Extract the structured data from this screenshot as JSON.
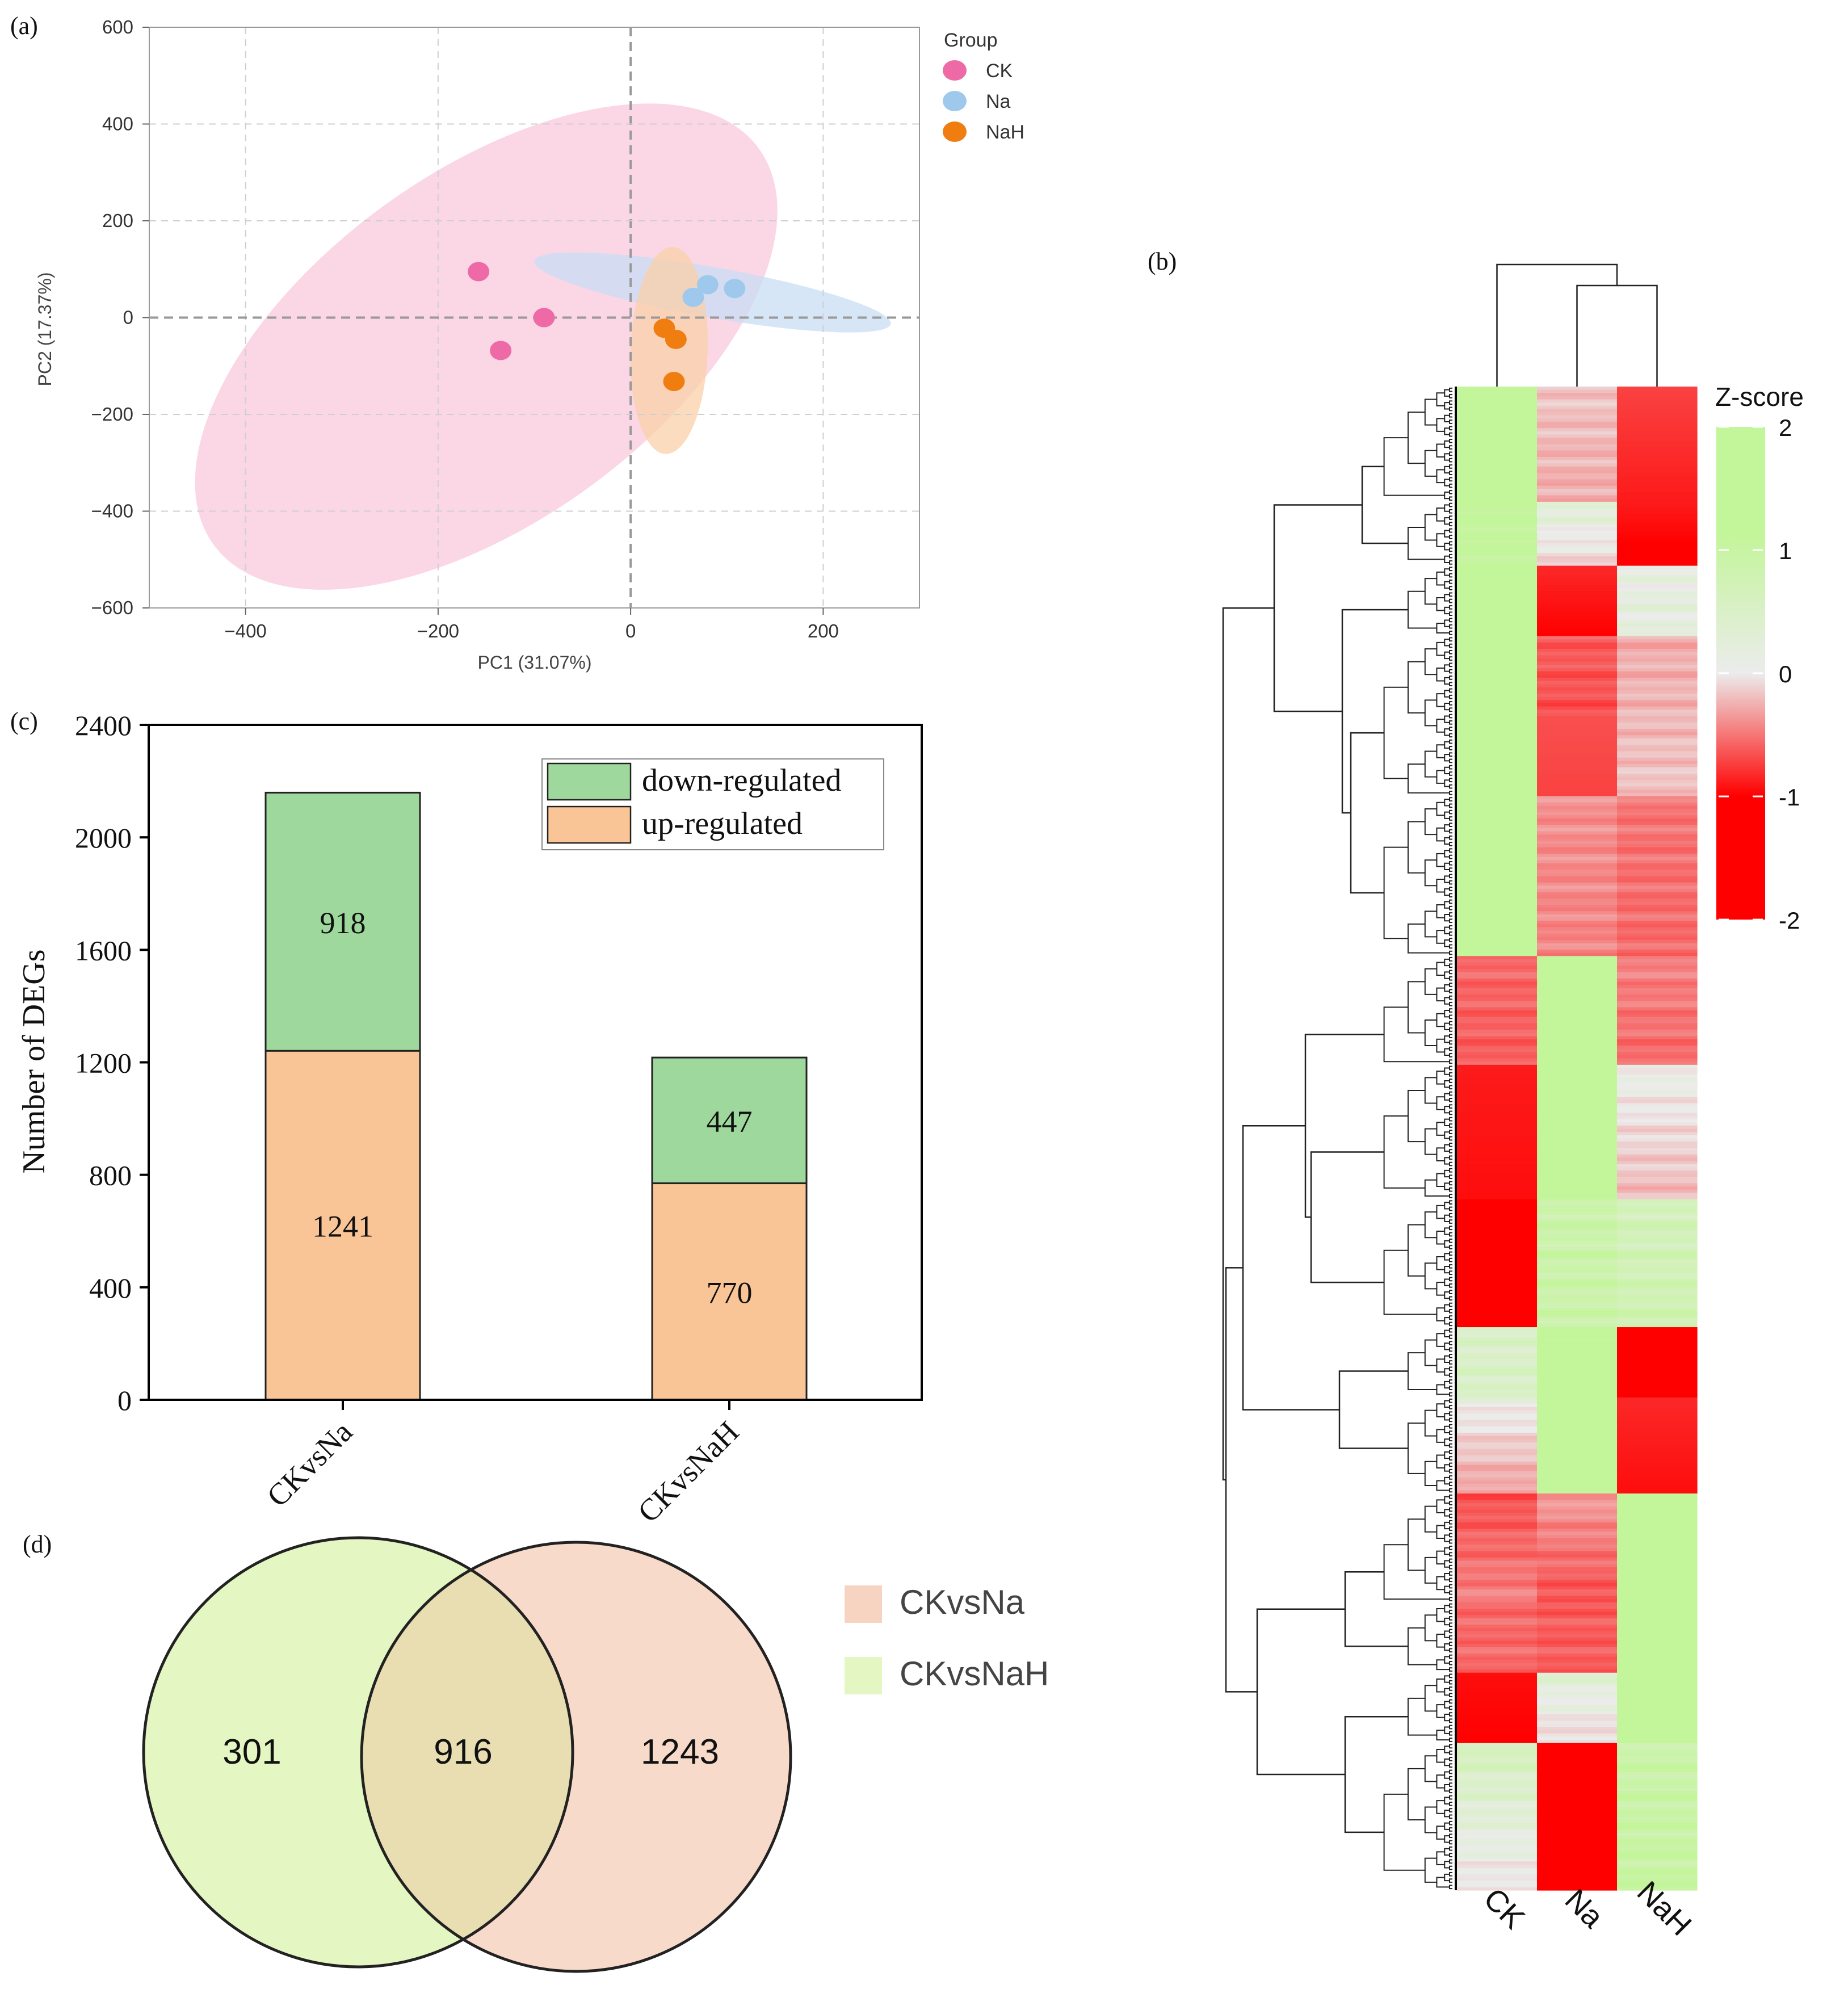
{
  "colors": {
    "ck": "#ee6aa7",
    "na": "#9fc9ec",
    "nah": "#f07d10",
    "ck_ellipse": "#f9c8dc",
    "na_ellipse": "#c8def4",
    "nah_ellipse": "#f9d0a8",
    "down": "#9ed89c",
    "up": "#f9c496",
    "heat_pos": "#c3f59a",
    "heat_zero": "#ececec",
    "heat_neg": "#ff0000",
    "venn_na": "#f7d4c2",
    "venn_nah": "#e4f6c2"
  },
  "panels": {
    "a": "(a)",
    "b": "(b)",
    "c": "(c)",
    "d": "(d)"
  },
  "chart_data": [
    {
      "id": "pca",
      "type": "scatter",
      "title": "",
      "xlabel": "PC1 (31.07%)",
      "ylabel": "PC2 (17.37%)",
      "xlim": [
        -500,
        300
      ],
      "ylim": [
        -600,
        600
      ],
      "xticks": [
        -400,
        -200,
        0,
        200
      ],
      "yticks": [
        -600,
        -400,
        -200,
        0,
        200,
        400,
        600
      ],
      "xtick_labels": [
        "−400",
        "−200",
        "0",
        "200"
      ],
      "ytick_labels": [
        "−600",
        "−400",
        "−200",
        "0",
        "200",
        "400",
        "600"
      ],
      "grid": true,
      "legend_title": "Group",
      "legend_position": "top-right outside",
      "series": [
        {
          "name": "CK",
          "points": [
            [
              -158,
              95
            ],
            [
              -135,
              -68
            ],
            [
              -90,
              0
            ]
          ],
          "ellipse": {
            "cx": -150,
            "cy": -60,
            "rx": 350,
            "ry": 360,
            "angle_deg": -36
          }
        },
        {
          "name": "Na",
          "points": [
            [
              65,
              42
            ],
            [
              80,
              68
            ],
            [
              108,
              60
            ]
          ],
          "ellipse": {
            "cx": 85,
            "cy": 52,
            "rx": 188,
            "ry": 52,
            "angle_deg": 10
          }
        },
        {
          "name": "NaH",
          "points": [
            [
              35,
              -22
            ],
            [
              47,
              -45
            ],
            [
              45,
              -132
            ]
          ],
          "ellipse": {
            "cx": 40,
            "cy": -68,
            "rx": 40,
            "ry": 214,
            "angle_deg": 2
          }
        }
      ]
    },
    {
      "id": "heatmap",
      "type": "heatmap",
      "columns": [
        "CK",
        "Na",
        "NaH"
      ],
      "colorbar_title": "Z-score",
      "colorbar_ticks": [
        2,
        1,
        0,
        -1,
        -2
      ],
      "colorbar_tick_labels": [
        "2",
        "1",
        "0",
        "-1",
        "-2"
      ],
      "vmin": -2,
      "vmax": 2,
      "blocks": [
        {
          "rows": 36,
          "CK": [
            1.3,
            1.3
          ],
          "Na": [
            -0.3,
            -0.5
          ],
          "NaH": [
            -1.3,
            -1.6
          ]
        },
        {
          "rows": 20,
          "CK": [
            1.0,
            1.0
          ],
          "Na": [
            0.3,
            -0.2
          ],
          "NaH": [
            -1.6,
            -1.9
          ]
        },
        {
          "rows": 22,
          "CK": [
            1.3,
            1.3
          ],
          "Na": [
            -1.5,
            -1.8
          ],
          "NaH": [
            0.1,
            0.2
          ]
        },
        {
          "rows": 50,
          "CK": [
            1.3,
            1.3
          ],
          "Na": [
            -1.1,
            -1.3
          ],
          "NaH": [
            -0.5,
            -0.3
          ]
        },
        {
          "rows": 50,
          "CK": [
            1.3,
            1.3
          ],
          "Na": [
            -0.7,
            -0.8
          ],
          "NaH": [
            -0.9,
            -1.0
          ]
        },
        {
          "rows": 34,
          "CK": [
            -1.0,
            -1.1
          ],
          "Na": [
            1.3,
            1.3
          ],
          "NaH": [
            -0.8,
            -1.0
          ]
        },
        {
          "rows": 42,
          "CK": [
            -1.6,
            -1.7
          ],
          "Na": [
            1.3,
            1.3
          ],
          "NaH": [
            0.1,
            -0.4
          ]
        },
        {
          "rows": 40,
          "CK": [
            -1.9,
            -2.0
          ],
          "Na": [
            0.8,
            0.8
          ],
          "NaH": [
            0.6,
            0.7
          ]
        },
        {
          "rows": 22,
          "CK": [
            0.4,
            0.5
          ],
          "Na": [
            1.3,
            1.3
          ],
          "NaH": [
            -1.8,
            -2.0
          ]
        },
        {
          "rows": 30,
          "CK": [
            0.1,
            -0.6
          ],
          "Na": [
            1.3,
            1.3
          ],
          "NaH": [
            -1.5,
            -1.7
          ]
        },
        {
          "rows": 34,
          "CK": [
            -1.2,
            -0.8
          ],
          "Na": [
            -0.6,
            -1.2
          ],
          "NaH": [
            1.3,
            1.3
          ]
        },
        {
          "rows": 22,
          "CK": [
            -1.0,
            -1.0
          ],
          "Na": [
            -1.1,
            -1.1
          ],
          "NaH": [
            1.3,
            1.3
          ]
        },
        {
          "rows": 22,
          "CK": [
            -1.7,
            -1.8
          ],
          "Na": [
            0.3,
            -0.2
          ],
          "NaH": [
            1.1,
            1.1
          ]
        },
        {
          "rows": 46,
          "CK": [
            0.6,
            -0.1
          ],
          "Na": [
            -1.9,
            -2.0
          ],
          "NaH": [
            0.8,
            0.9
          ]
        }
      ]
    },
    {
      "id": "degs",
      "type": "bar",
      "stacked": true,
      "categories": [
        "CKvsNa",
        "CKvsNaH"
      ],
      "ylabel": "Number of DEGs",
      "xlabel": "",
      "ylim": [
        0,
        2400
      ],
      "yticks": [
        0,
        400,
        800,
        1200,
        1600,
        2000,
        2400
      ],
      "legend_position": "top-right",
      "series": [
        {
          "name": "up-regulated",
          "values": [
            1241,
            770
          ]
        },
        {
          "name": "down-regulated",
          "values": [
            918,
            447
          ]
        }
      ]
    },
    {
      "id": "venn",
      "type": "venn",
      "sets": [
        "CKvsNa",
        "CKvsNaH"
      ],
      "regions": {
        "only_CKvsNaH": 301,
        "overlap": 916,
        "only_CKvsNa": 1243
      }
    }
  ]
}
